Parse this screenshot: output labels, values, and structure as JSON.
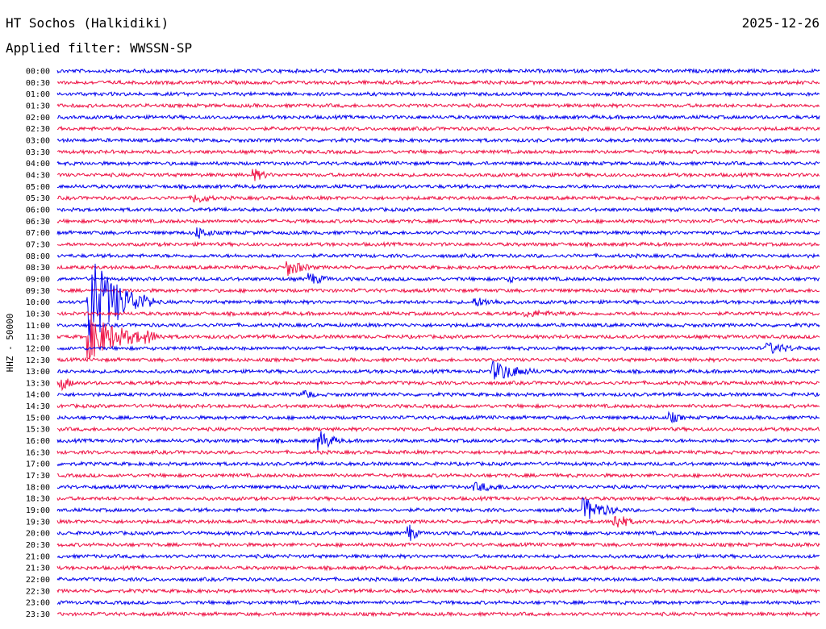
{
  "header": {
    "station": "HT Sochos (Halkidiki)",
    "date": "2025-12-26",
    "filter": "Applied filter: WWSSN-SP"
  },
  "colors": {
    "trace_a": "#0000ee",
    "trace_b": "#ee1144",
    "background": "#ffffff",
    "text": "#000000"
  },
  "chart_data": {
    "type": "line",
    "title": "HT Sochos (Halkidiki)",
    "subtitle": "Applied filter: WWSSN-SP",
    "ylabel": "HHZ - 50000",
    "xlabel": "",
    "grid": false,
    "legend": "none",
    "row_interval_minutes": 30,
    "row_labels": [
      "00:00",
      "00:30",
      "01:00",
      "01:30",
      "02:00",
      "02:30",
      "03:00",
      "03:30",
      "04:00",
      "04:30",
      "05:00",
      "05:30",
      "06:00",
      "06:30",
      "07:00",
      "07:30",
      "08:00",
      "08:30",
      "09:00",
      "09:30",
      "10:00",
      "10:30",
      "11:00",
      "11:30",
      "12:00",
      "12:30",
      "13:00",
      "13:30",
      "14:00",
      "14:30",
      "15:00",
      "15:30",
      "16:00",
      "16:30",
      "17:00",
      "17:30",
      "18:00",
      "18:30",
      "19:00",
      "19:30",
      "20:00",
      "20:30",
      "21:00",
      "21:30",
      "22:00",
      "22:30",
      "23:00",
      "23:30"
    ],
    "events": [
      {
        "row": 9,
        "minute": 7.8,
        "amplitude": 8,
        "duration": 1.2
      },
      {
        "row": 11,
        "minute": 5.5,
        "amplitude": 7,
        "duration": 1.5
      },
      {
        "row": 14,
        "minute": 5.6,
        "amplitude": 8,
        "duration": 1.2
      },
      {
        "row": 17,
        "minute": 9.1,
        "amplitude": 11,
        "duration": 1.5
      },
      {
        "row": 18,
        "minute": 10.0,
        "amplitude": 8,
        "duration": 1.5
      },
      {
        "row": 18,
        "minute": 17.8,
        "amplitude": 5,
        "duration": 1.0
      },
      {
        "row": 20,
        "minute": 16.5,
        "amplitude": 6,
        "duration": 3.0
      },
      {
        "row": 21,
        "minute": 18.5,
        "amplitude": 5,
        "duration": 4.5
      },
      {
        "row": 20,
        "minute": 1.3,
        "amplitude": 60,
        "duration": 2.5
      },
      {
        "row": 23,
        "minute": 1.3,
        "amplitude": 28,
        "duration": 3.0
      },
      {
        "row": 23,
        "minute": 3.6,
        "amplitude": 9,
        "duration": 1.2
      },
      {
        "row": 24,
        "minute": 28.0,
        "amplitude": 8,
        "duration": 2.5
      },
      {
        "row": 26,
        "minute": 17.2,
        "amplitude": 13,
        "duration": 2.5
      },
      {
        "row": 27,
        "minute": 0.2,
        "amplitude": 9,
        "duration": 1.0
      },
      {
        "row": 28,
        "minute": 9.8,
        "amplitude": 7,
        "duration": 0.8
      },
      {
        "row": 30,
        "minute": 24.2,
        "amplitude": 7,
        "duration": 1.0
      },
      {
        "row": 32,
        "minute": 10.4,
        "amplitude": 13,
        "duration": 1.2
      },
      {
        "row": 36,
        "minute": 16.5,
        "amplitude": 6,
        "duration": 4.0
      },
      {
        "row": 38,
        "minute": 20.8,
        "amplitude": 15,
        "duration": 2.0
      },
      {
        "row": 39,
        "minute": 22.0,
        "amplitude": 11,
        "duration": 1.2
      },
      {
        "row": 40,
        "minute": 13.9,
        "amplitude": 12,
        "duration": 0.6
      }
    ]
  }
}
